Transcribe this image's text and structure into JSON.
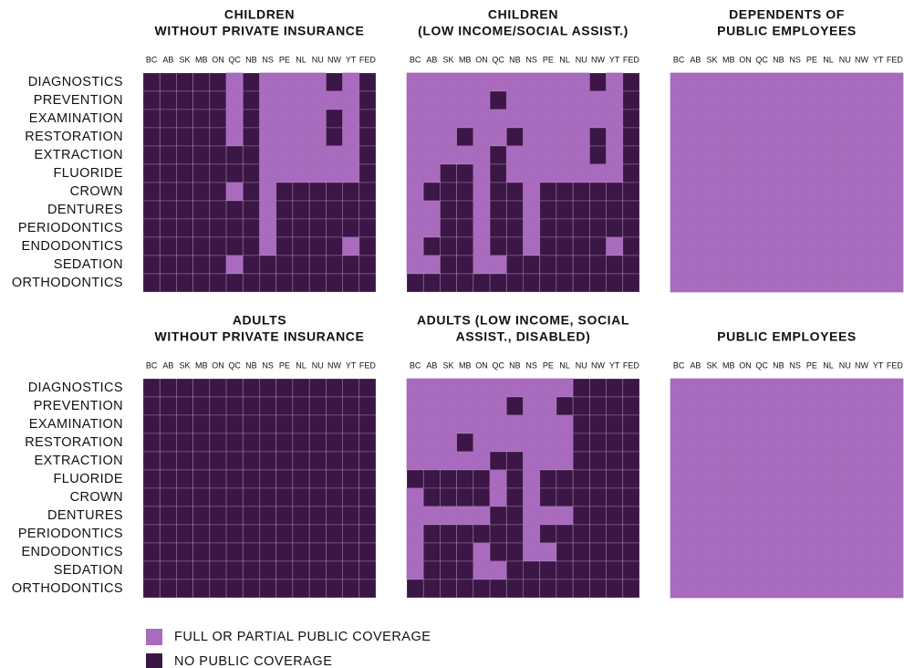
{
  "chart_data": {
    "type": "heatmap",
    "columns": [
      "BC",
      "AB",
      "SK",
      "MB",
      "ON",
      "QC",
      "NB",
      "NS",
      "PE",
      "NL",
      "NU",
      "NW",
      "YT",
      "FED"
    ],
    "rows": [
      "DIAGNOSTICS",
      "PREVENTION",
      "EXAMINATION",
      "RESTORATION",
      "EXTRACTION",
      "FLUORIDE",
      "CROWN",
      "DENTURES",
      "PERIODONTICS",
      "ENDODONTICS",
      "SEDATION",
      "ORTHODONTICS"
    ],
    "legend": [
      {
        "label": "FULL OR PARTIAL PUBLIC COVERAGE",
        "color": "#a96bbd"
      },
      {
        "label": "NO PUBLIC COVERAGE",
        "color": "#3b1646"
      }
    ],
    "panels": [
      {
        "title": [
          "CHILDREN",
          "WITHOUT PRIVATE INSURANCE"
        ],
        "values": [
          [
            0,
            0,
            0,
            0,
            0,
            1,
            0,
            1,
            1,
            1,
            1,
            0,
            1,
            0
          ],
          [
            0,
            0,
            0,
            0,
            0,
            1,
            0,
            1,
            1,
            1,
            1,
            1,
            1,
            0
          ],
          [
            0,
            0,
            0,
            0,
            0,
            1,
            0,
            1,
            1,
            1,
            1,
            0,
            1,
            0
          ],
          [
            0,
            0,
            0,
            0,
            0,
            1,
            0,
            1,
            1,
            1,
            1,
            0,
            1,
            0
          ],
          [
            0,
            0,
            0,
            0,
            0,
            0,
            0,
            1,
            1,
            1,
            1,
            1,
            1,
            0
          ],
          [
            0,
            0,
            0,
            0,
            0,
            0,
            0,
            1,
            1,
            1,
            1,
            1,
            1,
            0
          ],
          [
            0,
            0,
            0,
            0,
            0,
            1,
            0,
            1,
            0,
            0,
            0,
            0,
            0,
            0
          ],
          [
            0,
            0,
            0,
            0,
            0,
            0,
            0,
            1,
            0,
            0,
            0,
            0,
            0,
            0
          ],
          [
            0,
            0,
            0,
            0,
            0,
            0,
            0,
            1,
            0,
            0,
            0,
            0,
            0,
            0
          ],
          [
            0,
            0,
            0,
            0,
            0,
            0,
            0,
            1,
            0,
            0,
            0,
            0,
            1,
            0
          ],
          [
            0,
            0,
            0,
            0,
            0,
            1,
            0,
            0,
            0,
            0,
            0,
            0,
            0,
            0
          ],
          [
            0,
            0,
            0,
            0,
            0,
            0,
            0,
            0,
            0,
            0,
            0,
            0,
            0,
            0
          ]
        ]
      },
      {
        "title": [
          "CHILDREN",
          "(LOW INCOME/SOCIAL ASSIST.)"
        ],
        "values": [
          [
            1,
            1,
            1,
            1,
            1,
            1,
            1,
            1,
            1,
            1,
            1,
            0,
            1,
            0
          ],
          [
            1,
            1,
            1,
            1,
            1,
            0,
            1,
            1,
            1,
            1,
            1,
            1,
            1,
            0
          ],
          [
            1,
            1,
            1,
            1,
            1,
            1,
            1,
            1,
            1,
            1,
            1,
            1,
            1,
            0
          ],
          [
            1,
            1,
            1,
            0,
            1,
            1,
            0,
            1,
            1,
            1,
            1,
            0,
            1,
            0
          ],
          [
            1,
            1,
            1,
            1,
            1,
            0,
            1,
            1,
            1,
            1,
            1,
            0,
            1,
            0
          ],
          [
            1,
            1,
            0,
            0,
            1,
            0,
            1,
            1,
            1,
            1,
            1,
            1,
            1,
            0
          ],
          [
            1,
            0,
            0,
            0,
            1,
            0,
            0,
            1,
            0,
            0,
            0,
            0,
            0,
            0
          ],
          [
            1,
            1,
            0,
            0,
            1,
            0,
            0,
            1,
            0,
            0,
            0,
            0,
            0,
            0
          ],
          [
            1,
            1,
            0,
            0,
            1,
            0,
            0,
            1,
            0,
            0,
            0,
            0,
            0,
            0
          ],
          [
            1,
            0,
            0,
            0,
            1,
            0,
            0,
            1,
            0,
            0,
            0,
            0,
            1,
            0
          ],
          [
            1,
            1,
            0,
            0,
            1,
            1,
            0,
            0,
            0,
            0,
            0,
            0,
            0,
            0
          ],
          [
            0,
            0,
            0,
            0,
            0,
            0,
            0,
            0,
            0,
            0,
            0,
            0,
            0,
            0
          ]
        ]
      },
      {
        "title": [
          "DEPENDENTS OF",
          "PUBLIC EMPLOYEES"
        ],
        "values": [
          [
            1,
            1,
            1,
            1,
            1,
            1,
            1,
            1,
            1,
            1,
            1,
            1,
            1,
            1
          ],
          [
            1,
            1,
            1,
            1,
            1,
            1,
            1,
            1,
            1,
            1,
            1,
            1,
            1,
            1
          ],
          [
            1,
            1,
            1,
            1,
            1,
            1,
            1,
            1,
            1,
            1,
            1,
            1,
            1,
            1
          ],
          [
            1,
            1,
            1,
            1,
            1,
            1,
            1,
            1,
            1,
            1,
            1,
            1,
            1,
            1
          ],
          [
            1,
            1,
            1,
            1,
            1,
            1,
            1,
            1,
            1,
            1,
            1,
            1,
            1,
            1
          ],
          [
            1,
            1,
            1,
            1,
            1,
            1,
            1,
            1,
            1,
            1,
            1,
            1,
            1,
            1
          ],
          [
            1,
            1,
            1,
            1,
            1,
            1,
            1,
            1,
            1,
            1,
            1,
            1,
            1,
            1
          ],
          [
            1,
            1,
            1,
            1,
            1,
            1,
            1,
            1,
            1,
            1,
            1,
            1,
            1,
            1
          ],
          [
            1,
            1,
            1,
            1,
            1,
            1,
            1,
            1,
            1,
            1,
            1,
            1,
            1,
            1
          ],
          [
            1,
            1,
            1,
            1,
            1,
            1,
            1,
            1,
            1,
            1,
            1,
            1,
            1,
            1
          ],
          [
            1,
            1,
            1,
            1,
            1,
            1,
            1,
            1,
            1,
            1,
            1,
            1,
            1,
            1
          ],
          [
            1,
            1,
            1,
            1,
            1,
            1,
            1,
            1,
            1,
            1,
            1,
            1,
            1,
            1
          ]
        ]
      },
      {
        "title": [
          "ADULTS",
          "WITHOUT PRIVATE INSURANCE"
        ],
        "values": [
          [
            0,
            0,
            0,
            0,
            0,
            0,
            0,
            0,
            0,
            0,
            0,
            0,
            0,
            0
          ],
          [
            0,
            0,
            0,
            0,
            0,
            0,
            0,
            0,
            0,
            0,
            0,
            0,
            0,
            0
          ],
          [
            0,
            0,
            0,
            0,
            0,
            0,
            0,
            0,
            0,
            0,
            0,
            0,
            0,
            0
          ],
          [
            0,
            0,
            0,
            0,
            0,
            0,
            0,
            0,
            0,
            0,
            0,
            0,
            0,
            0
          ],
          [
            0,
            0,
            0,
            0,
            0,
            0,
            0,
            0,
            0,
            0,
            0,
            0,
            0,
            0
          ],
          [
            0,
            0,
            0,
            0,
            0,
            0,
            0,
            0,
            0,
            0,
            0,
            0,
            0,
            0
          ],
          [
            0,
            0,
            0,
            0,
            0,
            0,
            0,
            0,
            0,
            0,
            0,
            0,
            0,
            0
          ],
          [
            0,
            0,
            0,
            0,
            0,
            0,
            0,
            0,
            0,
            0,
            0,
            0,
            0,
            0
          ],
          [
            0,
            0,
            0,
            0,
            0,
            0,
            0,
            0,
            0,
            0,
            0,
            0,
            0,
            0
          ],
          [
            0,
            0,
            0,
            0,
            0,
            0,
            0,
            0,
            0,
            0,
            0,
            0,
            0,
            0
          ],
          [
            0,
            0,
            0,
            0,
            0,
            0,
            0,
            0,
            0,
            0,
            0,
            0,
            0,
            0
          ],
          [
            0,
            0,
            0,
            0,
            0,
            0,
            0,
            0,
            0,
            0,
            0,
            0,
            0,
            0
          ]
        ]
      },
      {
        "title": [
          "ADULTS (LOW INCOME, SOCIAL",
          "ASSIST., DISABLED)"
        ],
        "values": [
          [
            1,
            1,
            1,
            1,
            1,
            1,
            1,
            1,
            1,
            1,
            0,
            0,
            0,
            0
          ],
          [
            1,
            1,
            1,
            1,
            1,
            1,
            0,
            1,
            1,
            0,
            0,
            0,
            0,
            0
          ],
          [
            1,
            1,
            1,
            1,
            1,
            1,
            1,
            1,
            1,
            1,
            0,
            0,
            0,
            0
          ],
          [
            1,
            1,
            1,
            0,
            1,
            1,
            1,
            1,
            1,
            1,
            0,
            0,
            0,
            0
          ],
          [
            1,
            1,
            1,
            1,
            1,
            0,
            0,
            1,
            1,
            1,
            0,
            0,
            0,
            0
          ],
          [
            0,
            0,
            0,
            0,
            0,
            1,
            0,
            1,
            0,
            0,
            0,
            0,
            0,
            0
          ],
          [
            1,
            0,
            0,
            0,
            0,
            1,
            0,
            1,
            0,
            0,
            0,
            0,
            0,
            0
          ],
          [
            1,
            1,
            1,
            1,
            1,
            0,
            0,
            1,
            1,
            1,
            0,
            0,
            0,
            0
          ],
          [
            1,
            0,
            0,
            0,
            0,
            0,
            0,
            1,
            0,
            0,
            0,
            0,
            0,
            0
          ],
          [
            1,
            0,
            0,
            0,
            1,
            0,
            0,
            1,
            1,
            0,
            0,
            0,
            0,
            0
          ],
          [
            1,
            0,
            0,
            0,
            1,
            1,
            0,
            0,
            0,
            0,
            0,
            0,
            0,
            0
          ],
          [
            0,
            0,
            0,
            0,
            0,
            0,
            0,
            0,
            0,
            0,
            0,
            0,
            0,
            0
          ]
        ]
      },
      {
        "title": [
          "PUBLIC EMPLOYEES"
        ],
        "values": [
          [
            1,
            1,
            1,
            1,
            1,
            1,
            1,
            1,
            1,
            1,
            1,
            1,
            1,
            1
          ],
          [
            1,
            1,
            1,
            1,
            1,
            1,
            1,
            1,
            1,
            1,
            1,
            1,
            1,
            1
          ],
          [
            1,
            1,
            1,
            1,
            1,
            1,
            1,
            1,
            1,
            1,
            1,
            1,
            1,
            1
          ],
          [
            1,
            1,
            1,
            1,
            1,
            1,
            1,
            1,
            1,
            1,
            1,
            1,
            1,
            1
          ],
          [
            1,
            1,
            1,
            1,
            1,
            1,
            1,
            1,
            1,
            1,
            1,
            1,
            1,
            1
          ],
          [
            1,
            1,
            1,
            1,
            1,
            1,
            1,
            1,
            1,
            1,
            1,
            1,
            1,
            1
          ],
          [
            1,
            1,
            1,
            1,
            1,
            1,
            1,
            1,
            1,
            1,
            1,
            1,
            1,
            1
          ],
          [
            1,
            1,
            1,
            1,
            1,
            1,
            1,
            1,
            1,
            1,
            1,
            1,
            1,
            1
          ],
          [
            1,
            1,
            1,
            1,
            1,
            1,
            1,
            1,
            1,
            1,
            1,
            1,
            1,
            1
          ],
          [
            1,
            1,
            1,
            1,
            1,
            1,
            1,
            1,
            1,
            1,
            1,
            1,
            1,
            1
          ],
          [
            1,
            1,
            1,
            1,
            1,
            1,
            1,
            1,
            1,
            1,
            1,
            1,
            1,
            1
          ],
          [
            1,
            1,
            1,
            1,
            1,
            1,
            1,
            1,
            1,
            1,
            1,
            1,
            1,
            1
          ]
        ]
      }
    ]
  }
}
